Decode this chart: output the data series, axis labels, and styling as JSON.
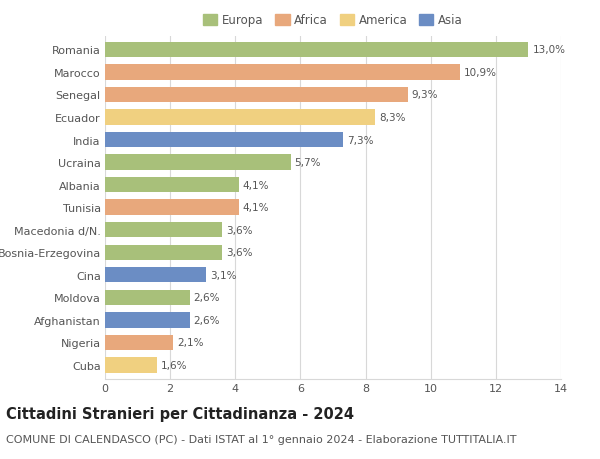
{
  "countries": [
    "Romania",
    "Marocco",
    "Senegal",
    "Ecuador",
    "India",
    "Ucraina",
    "Albania",
    "Tunisia",
    "Macedonia d/N.",
    "Bosnia-Erzegovina",
    "Cina",
    "Moldova",
    "Afghanistan",
    "Nigeria",
    "Cuba"
  ],
  "values": [
    13.0,
    10.9,
    9.3,
    8.3,
    7.3,
    5.7,
    4.1,
    4.1,
    3.6,
    3.6,
    3.1,
    2.6,
    2.6,
    2.1,
    1.6
  ],
  "labels": [
    "13,0%",
    "10,9%",
    "9,3%",
    "8,3%",
    "7,3%",
    "5,7%",
    "4,1%",
    "4,1%",
    "3,6%",
    "3,6%",
    "3,1%",
    "2,6%",
    "2,6%",
    "2,1%",
    "1,6%"
  ],
  "continents": [
    "Europa",
    "Africa",
    "Africa",
    "America",
    "Asia",
    "Europa",
    "Europa",
    "Africa",
    "Europa",
    "Europa",
    "Asia",
    "Europa",
    "Asia",
    "Africa",
    "America"
  ],
  "colors": {
    "Europa": "#a8c07a",
    "Africa": "#e8a87c",
    "America": "#f0d080",
    "Asia": "#6b8dc4"
  },
  "legend_order": [
    "Europa",
    "Africa",
    "America",
    "Asia"
  ],
  "title": "Cittadini Stranieri per Cittadinanza - 2024",
  "subtitle": "COMUNE DI CALENDASCO (PC) - Dati ISTAT al 1° gennaio 2024 - Elaborazione TUTTITALIA.IT",
  "xlim": [
    0,
    14
  ],
  "xticks": [
    0,
    2,
    4,
    6,
    8,
    10,
    12,
    14
  ],
  "background_color": "#ffffff",
  "grid_color": "#d8d8d8",
  "bar_height": 0.68,
  "title_fontsize": 10.5,
  "subtitle_fontsize": 8,
  "label_fontsize": 7.5,
  "tick_fontsize": 8,
  "legend_fontsize": 8.5
}
